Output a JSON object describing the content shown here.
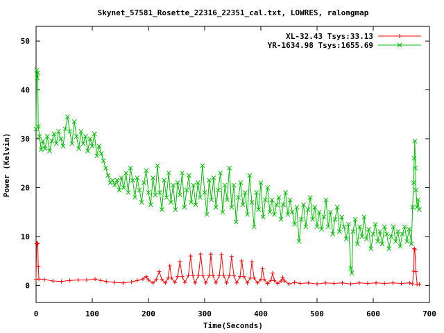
{
  "chart_data": {
    "type": "line",
    "title": "Skynet_57581_Rosette_22316_22351_cal.txt, LOWRES, ralongmap",
    "xlabel": "Time(Seconds)",
    "ylabel": "Power (Kelvin)",
    "xlim": [
      0,
      700
    ],
    "ylim": [
      -3.5,
      53
    ],
    "xticks": [
      0,
      100,
      200,
      300,
      400,
      500,
      600,
      700
    ],
    "yticks": [
      0,
      10,
      20,
      30,
      40,
      50
    ],
    "grid": false,
    "legend_position": "top-right",
    "series": [
      {
        "name": "XL-32.43 Tsys:33.13",
        "color": "#ff0000",
        "marker": "plus",
        "points": [
          [
            0,
            1.2
          ],
          [
            1,
            8.6
          ],
          [
            2,
            8.5
          ],
          [
            3,
            8.6
          ],
          [
            4,
            3.8
          ],
          [
            5,
            1.3
          ],
          [
            15,
            1.2
          ],
          [
            30,
            0.9
          ],
          [
            45,
            0.8
          ],
          [
            60,
            1.0
          ],
          [
            75,
            1.1
          ],
          [
            90,
            1.1
          ],
          [
            105,
            1.3
          ],
          [
            115,
            1.0
          ],
          [
            125,
            0.8
          ],
          [
            140,
            0.6
          ],
          [
            155,
            0.5
          ],
          [
            170,
            0.7
          ],
          [
            180,
            1.0
          ],
          [
            190,
            1.3
          ],
          [
            196,
            1.8
          ],
          [
            200,
            1.1
          ],
          [
            208,
            0.5
          ],
          [
            214,
            1.2
          ],
          [
            219,
            2.8
          ],
          [
            224,
            1.2
          ],
          [
            230,
            0.5
          ],
          [
            235,
            1.5
          ],
          [
            238,
            4.0
          ],
          [
            241,
            1.5
          ],
          [
            247,
            0.6
          ],
          [
            252,
            1.8
          ],
          [
            256,
            4.9
          ],
          [
            260,
            1.8
          ],
          [
            265,
            0.6
          ],
          [
            271,
            2.0
          ],
          [
            275,
            6.0
          ],
          [
            279,
            2.0
          ],
          [
            283,
            0.5
          ],
          [
            289,
            2.0
          ],
          [
            293,
            6.4
          ],
          [
            297,
            2.0
          ],
          [
            302,
            0.5
          ],
          [
            308,
            2.0
          ],
          [
            311,
            6.4
          ],
          [
            315,
            2.0
          ],
          [
            320,
            0.5
          ],
          [
            326,
            2.0
          ],
          [
            330,
            6.3
          ],
          [
            334,
            2.0
          ],
          [
            339,
            0.5
          ],
          [
            344,
            2.0
          ],
          [
            348,
            5.9
          ],
          [
            352,
            2.0
          ],
          [
            357,
            0.5
          ],
          [
            363,
            1.8
          ],
          [
            366,
            5.0
          ],
          [
            370,
            1.8
          ],
          [
            376,
            0.5
          ],
          [
            381,
            1.5
          ],
          [
            384,
            4.8
          ],
          [
            388,
            1.5
          ],
          [
            394,
            0.5
          ],
          [
            400,
            1.2
          ],
          [
            403,
            3.4
          ],
          [
            406,
            1.2
          ],
          [
            412,
            0.4
          ],
          [
            418,
            1.0
          ],
          [
            421,
            2.5
          ],
          [
            424,
            1.0
          ],
          [
            430,
            0.4
          ],
          [
            436,
            0.9
          ],
          [
            439,
            1.6
          ],
          [
            442,
            0.9
          ],
          [
            450,
            0.3
          ],
          [
            460,
            0.6
          ],
          [
            470,
            0.4
          ],
          [
            485,
            0.5
          ],
          [
            500,
            0.3
          ],
          [
            515,
            0.5
          ],
          [
            530,
            0.4
          ],
          [
            545,
            0.5
          ],
          [
            560,
            0.3
          ],
          [
            575,
            0.5
          ],
          [
            590,
            0.4
          ],
          [
            605,
            0.5
          ],
          [
            620,
            0.4
          ],
          [
            635,
            0.5
          ],
          [
            650,
            0.4
          ],
          [
            665,
            0.5
          ],
          [
            670,
            0.3
          ],
          [
            672,
            2.9
          ],
          [
            673,
            7.5
          ],
          [
            674,
            7.3
          ],
          [
            676,
            2.8
          ],
          [
            678,
            0.2
          ],
          [
            682,
            0.2
          ]
        ]
      },
      {
        "name": "YR-1634.98 Tsys:1655.69",
        "color": "#00c000",
        "marker": "cross",
        "points": [
          [
            0,
            32.0
          ],
          [
            1,
            44.0
          ],
          [
            2,
            42.5
          ],
          [
            3,
            43.5
          ],
          [
            4,
            32.5
          ],
          [
            6,
            30.5
          ],
          [
            9,
            27.8
          ],
          [
            12,
            29.5
          ],
          [
            16,
            28.0
          ],
          [
            20,
            30.5
          ],
          [
            24,
            27.5
          ],
          [
            28,
            29.5
          ],
          [
            32,
            31.0
          ],
          [
            36,
            29.0
          ],
          [
            40,
            31.5
          ],
          [
            44,
            30.0
          ],
          [
            48,
            28.5
          ],
          [
            52,
            32.0
          ],
          [
            56,
            34.5
          ],
          [
            60,
            31.5
          ],
          [
            64,
            29.0
          ],
          [
            68,
            33.5
          ],
          [
            72,
            30.5
          ],
          [
            76,
            28.0
          ],
          [
            80,
            31.5
          ],
          [
            84,
            29.0
          ],
          [
            88,
            30.5
          ],
          [
            92,
            27.5
          ],
          [
            96,
            30.0
          ],
          [
            100,
            28.5
          ],
          [
            104,
            31.0
          ],
          [
            108,
            26.5
          ],
          [
            112,
            28.5
          ],
          [
            116,
            27.0
          ],
          [
            120,
            25.5
          ],
          [
            124,
            24.0
          ],
          [
            128,
            22.5
          ],
          [
            132,
            21.0
          ],
          [
            136,
            21.5
          ],
          [
            140,
            20.5
          ],
          [
            144,
            21.5
          ],
          [
            148,
            19.5
          ],
          [
            152,
            22.0
          ],
          [
            156,
            20.0
          ],
          [
            160,
            23.0
          ],
          [
            164,
            19.0
          ],
          [
            168,
            24.0
          ],
          [
            172,
            21.5
          ],
          [
            176,
            18.0
          ],
          [
            180,
            22.0
          ],
          [
            184,
            19.5
          ],
          [
            188,
            17.0
          ],
          [
            192,
            21.0
          ],
          [
            196,
            23.5
          ],
          [
            200,
            19.0
          ],
          [
            204,
            16.5
          ],
          [
            208,
            22.0
          ],
          [
            212,
            18.5
          ],
          [
            216,
            24.5
          ],
          [
            220,
            19.0
          ],
          [
            224,
            15.5
          ],
          [
            228,
            21.5
          ],
          [
            232,
            18.0
          ],
          [
            236,
            23.0
          ],
          [
            240,
            17.0
          ],
          [
            244,
            20.5
          ],
          [
            248,
            15.5
          ],
          [
            252,
            21.0
          ],
          [
            256,
            18.5
          ],
          [
            260,
            23.0
          ],
          [
            264,
            16.0
          ],
          [
            268,
            19.5
          ],
          [
            272,
            22.5
          ],
          [
            276,
            17.0
          ],
          [
            280,
            20.5
          ],
          [
            284,
            16.5
          ],
          [
            288,
            21.0
          ],
          [
            292,
            18.0
          ],
          [
            296,
            24.5
          ],
          [
            300,
            19.0
          ],
          [
            304,
            14.5
          ],
          [
            308,
            21.5
          ],
          [
            312,
            17.5
          ],
          [
            316,
            22.0
          ],
          [
            320,
            16.0
          ],
          [
            324,
            19.5
          ],
          [
            328,
            23.0
          ],
          [
            332,
            15.0
          ],
          [
            336,
            20.5
          ],
          [
            340,
            17.5
          ],
          [
            344,
            24.0
          ],
          [
            348,
            16.0
          ],
          [
            352,
            20.5
          ],
          [
            356,
            13.0
          ],
          [
            360,
            18.0
          ],
          [
            364,
            21.0
          ],
          [
            368,
            16.5
          ],
          [
            372,
            19.0
          ],
          [
            376,
            14.5
          ],
          [
            380,
            22.5
          ],
          [
            384,
            17.0
          ],
          [
            388,
            12.0
          ],
          [
            392,
            19.0
          ],
          [
            396,
            15.5
          ],
          [
            400,
            21.0
          ],
          [
            404,
            14.0
          ],
          [
            408,
            17.5
          ],
          [
            412,
            20.0
          ],
          [
            416,
            15.0
          ],
          [
            420,
            17.5
          ],
          [
            424,
            14.5
          ],
          [
            428,
            16.5
          ],
          [
            432,
            18.0
          ],
          [
            436,
            13.5
          ],
          [
            440,
            16.5
          ],
          [
            444,
            19.0
          ],
          [
            448,
            14.5
          ],
          [
            452,
            17.5
          ],
          [
            456,
            15.0
          ],
          [
            460,
            12.5
          ],
          [
            464,
            16.0
          ],
          [
            468,
            9.0
          ],
          [
            472,
            13.5
          ],
          [
            476,
            16.5
          ],
          [
            480,
            12.0
          ],
          [
            484,
            15.5
          ],
          [
            488,
            18.0
          ],
          [
            492,
            13.5
          ],
          [
            496,
            16.0
          ],
          [
            500,
            12.0
          ],
          [
            504,
            15.0
          ],
          [
            508,
            11.5
          ],
          [
            512,
            14.0
          ],
          [
            516,
            17.5
          ],
          [
            520,
            12.0
          ],
          [
            524,
            15.0
          ],
          [
            528,
            10.5
          ],
          [
            532,
            13.5
          ],
          [
            536,
            16.0
          ],
          [
            540,
            11.0
          ],
          [
            544,
            14.0
          ],
          [
            548,
            12.0
          ],
          [
            552,
            9.5
          ],
          [
            556,
            12.5
          ],
          [
            560,
            3.5
          ],
          [
            562,
            2.5
          ],
          [
            564,
            11.0
          ],
          [
            568,
            13.5
          ],
          [
            572,
            8.5
          ],
          [
            576,
            12.0
          ],
          [
            580,
            10.0
          ],
          [
            584,
            14.0
          ],
          [
            588,
            9.5
          ],
          [
            592,
            11.5
          ],
          [
            596,
            7.5
          ],
          [
            600,
            10.5
          ],
          [
            604,
            12.5
          ],
          [
            608,
            9.0
          ],
          [
            612,
            11.0
          ],
          [
            616,
            8.5
          ],
          [
            620,
            12.0
          ],
          [
            624,
            10.5
          ],
          [
            628,
            7.5
          ],
          [
            632,
            10.0
          ],
          [
            636,
            12.0
          ],
          [
            640,
            9.0
          ],
          [
            644,
            11.0
          ],
          [
            648,
            8.0
          ],
          [
            652,
            10.5
          ],
          [
            656,
            12.0
          ],
          [
            660,
            9.0
          ],
          [
            664,
            11.5
          ],
          [
            668,
            8.5
          ],
          [
            670,
            16.0
          ],
          [
            672,
            21.0
          ],
          [
            673,
            26.0
          ],
          [
            674,
            29.5
          ],
          [
            675,
            24.0
          ],
          [
            676,
            19.5
          ],
          [
            678,
            16.0
          ],
          [
            680,
            17.5
          ],
          [
            682,
            15.5
          ]
        ]
      }
    ]
  }
}
